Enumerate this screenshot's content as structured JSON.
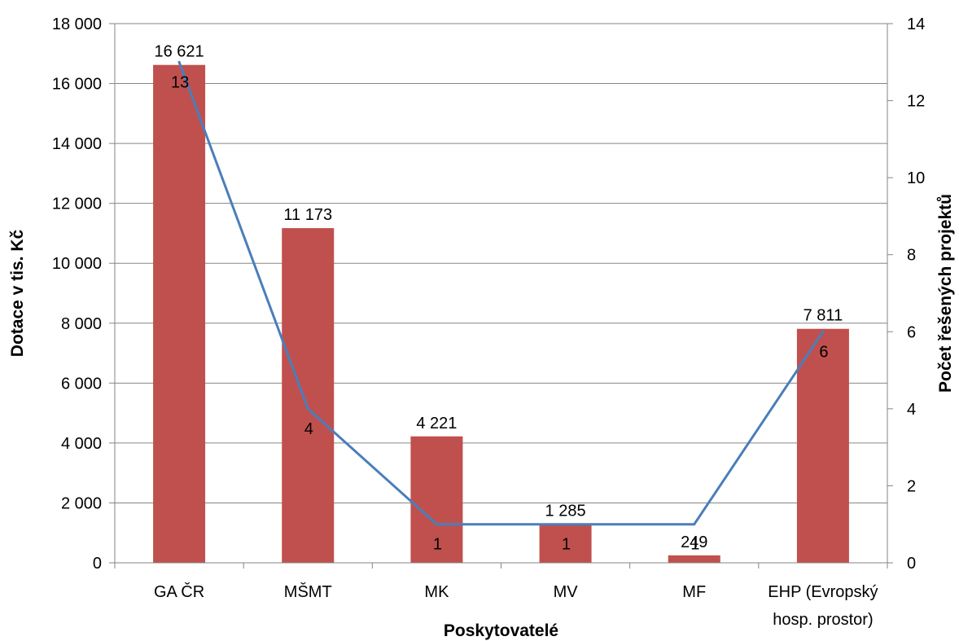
{
  "chart_data": {
    "type": "bar",
    "categories": [
      "GA ČR",
      "MŠMT",
      "MK",
      "MV",
      "MF",
      "EHP (Evropský hosp. prostor)"
    ],
    "category_lines": [
      [
        "GA ČR"
      ],
      [
        "MŠMT"
      ],
      [
        "MK"
      ],
      [
        "MV"
      ],
      [
        "MF"
      ],
      [
        "EHP (Evropský",
        "hosp. prostor)"
      ]
    ],
    "xlabel": "Poskytovatelé",
    "ylabel": "Dotace v tis. Kč",
    "y2label": "Počet řešených projektů",
    "ylim": [
      0,
      18000
    ],
    "y2lim": [
      0,
      14
    ],
    "yticks": [
      0,
      2000,
      4000,
      6000,
      8000,
      10000,
      12000,
      14000,
      16000,
      18000
    ],
    "ytick_labels": [
      "0",
      "2 000",
      "4 000",
      "6 000",
      "8 000",
      "10 000",
      "12 000",
      "14 000",
      "16 000",
      "18 000"
    ],
    "y2ticks": [
      0,
      2,
      4,
      6,
      8,
      10,
      12,
      14
    ],
    "y2tick_labels": [
      "0",
      "2",
      "4",
      "6",
      "8",
      "10",
      "12",
      "14"
    ],
    "grid": true,
    "legend": "none",
    "series": [
      {
        "type": "bar",
        "axis": "left",
        "values": [
          16621,
          11173,
          4221,
          1285,
          249,
          7811
        ],
        "value_labels": [
          "16 621",
          "11 173",
          "4 221",
          "1 285",
          "249",
          "7 811"
        ],
        "color": "#c0504d"
      },
      {
        "type": "line",
        "axis": "right",
        "values": [
          13,
          4,
          1,
          1,
          1,
          6
        ],
        "value_labels": [
          "13",
          "4",
          "1",
          "1",
          "1",
          "6"
        ],
        "color": "#4a7ebb"
      }
    ]
  }
}
